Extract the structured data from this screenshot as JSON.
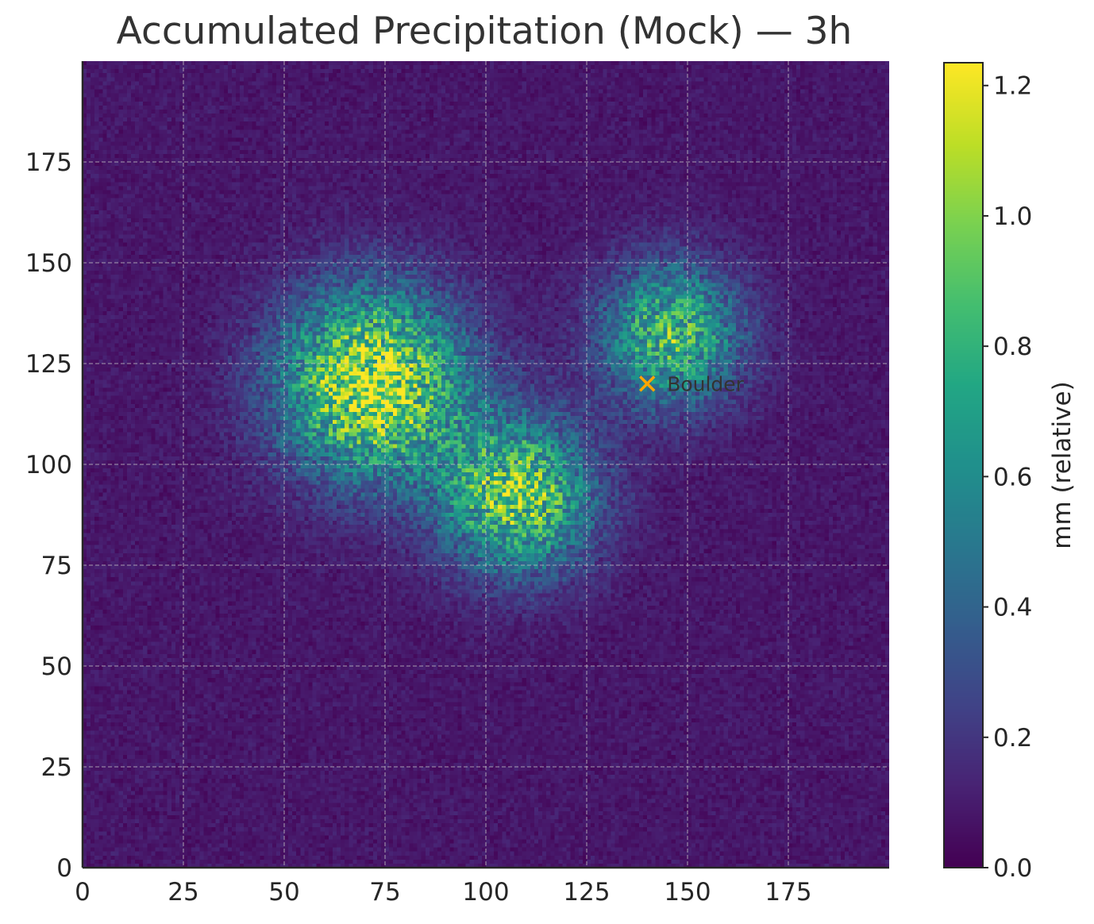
{
  "title": "Accumulated Precipitation (Mock) — 3h",
  "chart_data": {
    "type": "heatmap",
    "title": "Accumulated Precipitation (Mock) — 3h",
    "xlabel": "",
    "ylabel": "",
    "grid_size": [
      200,
      200
    ],
    "xlim": [
      0,
      200
    ],
    "ylim": [
      0,
      200
    ],
    "x_ticks": [
      0,
      25,
      50,
      75,
      100,
      125,
      150,
      175
    ],
    "y_ticks": [
      0,
      25,
      50,
      75,
      100,
      125,
      150,
      175
    ],
    "grid": true,
    "colormap": "viridis",
    "value_range": [
      0.0,
      1.23
    ],
    "background_level": 0.08,
    "blobs": [
      {
        "cx": 72,
        "cy": 120,
        "peak": 1.05,
        "sigma": 16
      },
      {
        "cx": 108,
        "cy": 92,
        "peak": 0.88,
        "sigma": 13
      },
      {
        "cx": 146,
        "cy": 132,
        "peak": 0.75,
        "sigma": 12
      }
    ],
    "colorbar": {
      "label": "mm (relative)",
      "ticks": [
        0.0,
        0.2,
        0.4,
        0.6,
        0.8,
        1.0,
        1.2
      ],
      "tick_labels": [
        "0.0",
        "0.2",
        "0.4",
        "0.6",
        "0.8",
        "1.0",
        "1.2"
      ],
      "min": 0.0,
      "max": 1.235
    },
    "annotations": [
      {
        "label": "Boulder",
        "x": 140,
        "y": 120,
        "marker": "x",
        "color": "#ffa500"
      }
    ]
  }
}
